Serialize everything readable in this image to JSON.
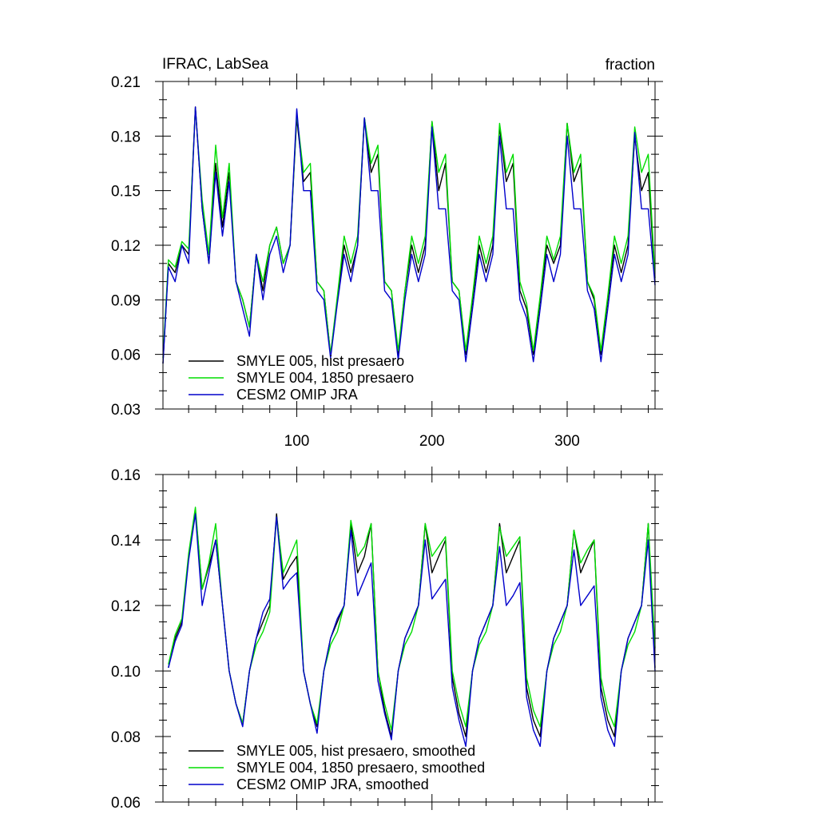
{
  "chart_data": [
    {
      "type": "line",
      "title_left": "IFRAC, LabSea",
      "title_right": "fraction",
      "xlabel": "",
      "ylabel": "",
      "xlim": [
        1,
        365
      ],
      "ylim": [
        0.03,
        0.21
      ],
      "yticks": [
        "0.21",
        "0.18",
        "0.15",
        "0.12",
        "0.09",
        "0.06",
        "0.03"
      ],
      "xticks": [
        "100",
        "200",
        "300"
      ],
      "legend_position": "bottom-left",
      "grid": false,
      "series": [
        {
          "name": "SMYLE 005, hist presaero",
          "color": "#000000",
          "x": [
            1,
            5,
            10,
            15,
            20,
            25,
            30,
            35,
            40,
            45,
            50,
            55,
            60,
            65,
            70,
            75,
            80,
            85,
            90,
            95,
            100,
            105,
            110,
            115,
            120,
            125,
            130,
            135,
            140,
            145,
            150,
            155,
            160,
            165,
            170,
            175,
            180,
            185,
            190,
            195,
            200,
            205,
            210,
            215,
            220,
            225,
            230,
            235,
            240,
            245,
            250,
            255,
            260,
            265,
            270,
            275,
            280,
            285,
            290,
            295,
            300,
            305,
            310,
            315,
            320,
            325,
            330,
            335,
            340,
            345,
            350,
            355,
            360,
            365
          ],
          "y": [
            0.055,
            0.11,
            0.105,
            0.12,
            0.115,
            0.196,
            0.14,
            0.11,
            0.165,
            0.13,
            0.16,
            0.1,
            0.09,
            0.075,
            0.115,
            0.095,
            0.12,
            0.13,
            0.11,
            0.12,
            0.19,
            0.155,
            0.16,
            0.1,
            0.095,
            0.06,
            0.09,
            0.12,
            0.105,
            0.12,
            0.19,
            0.16,
            0.17,
            0.1,
            0.095,
            0.06,
            0.095,
            0.12,
            0.105,
            0.12,
            0.188,
            0.15,
            0.165,
            0.1,
            0.095,
            0.06,
            0.09,
            0.12,
            0.105,
            0.12,
            0.185,
            0.155,
            0.165,
            0.095,
            0.085,
            0.06,
            0.09,
            0.12,
            0.11,
            0.12,
            0.187,
            0.155,
            0.165,
            0.1,
            0.09,
            0.06,
            0.09,
            0.12,
            0.105,
            0.12,
            0.18,
            0.15,
            0.16,
            0.1
          ]
        },
        {
          "name": "SMYLE 004, 1850 presaero",
          "color": "#00dd00",
          "x": [
            1,
            5,
            10,
            15,
            20,
            25,
            30,
            35,
            40,
            45,
            50,
            55,
            60,
            65,
            70,
            75,
            80,
            85,
            90,
            95,
            100,
            105,
            110,
            115,
            120,
            125,
            130,
            135,
            140,
            145,
            150,
            155,
            160,
            165,
            170,
            175,
            180,
            185,
            190,
            195,
            200,
            205,
            210,
            215,
            220,
            225,
            230,
            235,
            240,
            245,
            250,
            255,
            260,
            265,
            270,
            275,
            280,
            285,
            290,
            295,
            300,
            305,
            310,
            315,
            320,
            325,
            330,
            335,
            340,
            345,
            350,
            355,
            360,
            365
          ],
          "y": [
            0.058,
            0.112,
            0.108,
            0.122,
            0.118,
            0.195,
            0.145,
            0.115,
            0.175,
            0.135,
            0.165,
            0.1,
            0.09,
            0.075,
            0.115,
            0.1,
            0.12,
            0.13,
            0.11,
            0.12,
            0.192,
            0.16,
            0.165,
            0.1,
            0.095,
            0.06,
            0.092,
            0.125,
            0.11,
            0.125,
            0.19,
            0.165,
            0.175,
            0.1,
            0.095,
            0.062,
            0.095,
            0.125,
            0.11,
            0.125,
            0.188,
            0.16,
            0.17,
            0.1,
            0.095,
            0.062,
            0.092,
            0.125,
            0.11,
            0.125,
            0.187,
            0.16,
            0.17,
            0.1,
            0.088,
            0.062,
            0.092,
            0.125,
            0.112,
            0.125,
            0.187,
            0.16,
            0.17,
            0.1,
            0.092,
            0.062,
            0.092,
            0.125,
            0.11,
            0.125,
            0.185,
            0.16,
            0.17,
            0.102
          ]
        },
        {
          "name": "CESM2 OMIP JRA",
          "color": "#0000cc",
          "x": [
            1,
            5,
            10,
            15,
            20,
            25,
            30,
            35,
            40,
            45,
            50,
            55,
            60,
            65,
            70,
            75,
            80,
            85,
            90,
            95,
            100,
            105,
            110,
            115,
            120,
            125,
            130,
            135,
            140,
            145,
            150,
            155,
            160,
            165,
            170,
            175,
            180,
            185,
            190,
            195,
            200,
            205,
            210,
            215,
            220,
            225,
            230,
            235,
            240,
            245,
            250,
            255,
            260,
            265,
            270,
            275,
            280,
            285,
            290,
            295,
            300,
            305,
            310,
            315,
            320,
            325,
            330,
            335,
            340,
            345,
            350,
            355,
            360,
            365
          ],
          "y": [
            0.055,
            0.108,
            0.1,
            0.12,
            0.11,
            0.196,
            0.14,
            0.11,
            0.16,
            0.125,
            0.155,
            0.1,
            0.085,
            0.07,
            0.115,
            0.09,
            0.115,
            0.125,
            0.105,
            0.12,
            0.195,
            0.15,
            0.15,
            0.095,
            0.09,
            0.058,
            0.088,
            0.115,
            0.1,
            0.12,
            0.19,
            0.15,
            0.15,
            0.095,
            0.09,
            0.057,
            0.09,
            0.115,
            0.1,
            0.115,
            0.185,
            0.14,
            0.14,
            0.095,
            0.09,
            0.056,
            0.085,
            0.115,
            0.1,
            0.115,
            0.18,
            0.14,
            0.14,
            0.09,
            0.08,
            0.056,
            0.085,
            0.115,
            0.1,
            0.115,
            0.18,
            0.14,
            0.14,
            0.095,
            0.085,
            0.056,
            0.085,
            0.115,
            0.1,
            0.115,
            0.182,
            0.14,
            0.14,
            0.098
          ]
        }
      ]
    },
    {
      "type": "line",
      "title_left": "",
      "title_right": "",
      "xlabel": "",
      "ylabel": "",
      "xlim": [
        1,
        365
      ],
      "ylim": [
        0.06,
        0.16
      ],
      "yticks": [
        "0.16",
        "0.14",
        "0.12",
        "0.10",
        "0.08",
        "0.06"
      ],
      "xticks": [],
      "legend_position": "bottom-left",
      "grid": false,
      "series": [
        {
          "name": "SMYLE 005, hist presaero, smoothed",
          "color": "#000000",
          "x": [
            5,
            10,
            15,
            20,
            25,
            30,
            35,
            40,
            45,
            50,
            55,
            60,
            65,
            70,
            75,
            80,
            85,
            90,
            95,
            100,
            105,
            110,
            115,
            120,
            125,
            130,
            135,
            140,
            145,
            150,
            155,
            160,
            165,
            170,
            175,
            180,
            185,
            190,
            195,
            200,
            205,
            210,
            215,
            220,
            225,
            230,
            235,
            240,
            245,
            250,
            255,
            260,
            265,
            270,
            275,
            280,
            285,
            290,
            295,
            300,
            305,
            310,
            315,
            320,
            325,
            330,
            335,
            340,
            345,
            350,
            355,
            360,
            365
          ],
          "y": [
            0.101,
            0.11,
            0.115,
            0.135,
            0.149,
            0.125,
            0.132,
            0.14,
            0.12,
            0.1,
            0.09,
            0.084,
            0.1,
            0.11,
            0.115,
            0.12,
            0.148,
            0.128,
            0.132,
            0.135,
            0.1,
            0.09,
            0.083,
            0.1,
            0.11,
            0.115,
            0.12,
            0.145,
            0.13,
            0.135,
            0.145,
            0.1,
            0.088,
            0.08,
            0.1,
            0.11,
            0.115,
            0.12,
            0.145,
            0.13,
            0.135,
            0.14,
            0.098,
            0.087,
            0.08,
            0.1,
            0.11,
            0.115,
            0.12,
            0.145,
            0.13,
            0.135,
            0.14,
            0.095,
            0.085,
            0.08,
            0.1,
            0.11,
            0.115,
            0.12,
            0.143,
            0.13,
            0.135,
            0.14,
            0.095,
            0.085,
            0.08,
            0.1,
            0.11,
            0.115,
            0.12,
            0.145,
            0.101
          ]
        },
        {
          "name": "SMYLE 004, 1850 presaero, smoothed",
          "color": "#00dd00",
          "x": [
            5,
            10,
            15,
            20,
            25,
            30,
            35,
            40,
            45,
            50,
            55,
            60,
            65,
            70,
            75,
            80,
            85,
            90,
            95,
            100,
            105,
            110,
            115,
            120,
            125,
            130,
            135,
            140,
            145,
            150,
            155,
            160,
            165,
            170,
            175,
            180,
            185,
            190,
            195,
            200,
            205,
            210,
            215,
            220,
            225,
            230,
            235,
            240,
            245,
            250,
            255,
            260,
            265,
            270,
            275,
            280,
            285,
            290,
            295,
            300,
            305,
            310,
            315,
            320,
            325,
            330,
            335,
            340,
            345,
            350,
            355,
            360,
            365
          ],
          "y": [
            0.102,
            0.111,
            0.116,
            0.136,
            0.15,
            0.125,
            0.133,
            0.145,
            0.12,
            0.1,
            0.09,
            0.084,
            0.1,
            0.108,
            0.112,
            0.118,
            0.147,
            0.13,
            0.135,
            0.14,
            0.1,
            0.09,
            0.084,
            0.1,
            0.108,
            0.112,
            0.12,
            0.146,
            0.135,
            0.138,
            0.145,
            0.1,
            0.09,
            0.082,
            0.1,
            0.108,
            0.112,
            0.12,
            0.145,
            0.135,
            0.138,
            0.141,
            0.1,
            0.09,
            0.083,
            0.1,
            0.108,
            0.112,
            0.12,
            0.144,
            0.135,
            0.138,
            0.141,
            0.098,
            0.088,
            0.083,
            0.1,
            0.108,
            0.112,
            0.12,
            0.143,
            0.133,
            0.137,
            0.14,
            0.098,
            0.088,
            0.083,
            0.1,
            0.108,
            0.112,
            0.12,
            0.145,
            0.107
          ]
        },
        {
          "name": "CESM2 OMIP JRA, smoothed",
          "color": "#0000cc",
          "x": [
            5,
            10,
            15,
            20,
            25,
            30,
            35,
            40,
            45,
            50,
            55,
            60,
            65,
            70,
            75,
            80,
            85,
            90,
            95,
            100,
            105,
            110,
            115,
            120,
            125,
            130,
            135,
            140,
            145,
            150,
            155,
            160,
            165,
            170,
            175,
            180,
            185,
            190,
            195,
            200,
            205,
            210,
            215,
            220,
            225,
            230,
            235,
            240,
            245,
            250,
            255,
            260,
            265,
            270,
            275,
            280,
            285,
            290,
            295,
            300,
            305,
            310,
            315,
            320,
            325,
            330,
            335,
            340,
            345,
            350,
            355,
            360,
            365
          ],
          "y": [
            0.101,
            0.109,
            0.114,
            0.134,
            0.148,
            0.12,
            0.13,
            0.14,
            0.12,
            0.1,
            0.09,
            0.083,
            0.1,
            0.11,
            0.118,
            0.122,
            0.147,
            0.125,
            0.128,
            0.13,
            0.1,
            0.09,
            0.081,
            0.1,
            0.11,
            0.116,
            0.12,
            0.143,
            0.123,
            0.128,
            0.133,
            0.097,
            0.087,
            0.079,
            0.1,
            0.11,
            0.115,
            0.12,
            0.14,
            0.122,
            0.125,
            0.128,
            0.095,
            0.085,
            0.077,
            0.1,
            0.11,
            0.115,
            0.12,
            0.138,
            0.12,
            0.123,
            0.127,
            0.092,
            0.082,
            0.077,
            0.1,
            0.11,
            0.115,
            0.12,
            0.137,
            0.12,
            0.123,
            0.126,
            0.092,
            0.082,
            0.077,
            0.1,
            0.11,
            0.115,
            0.12,
            0.14,
            0.1
          ]
        }
      ]
    }
  ]
}
